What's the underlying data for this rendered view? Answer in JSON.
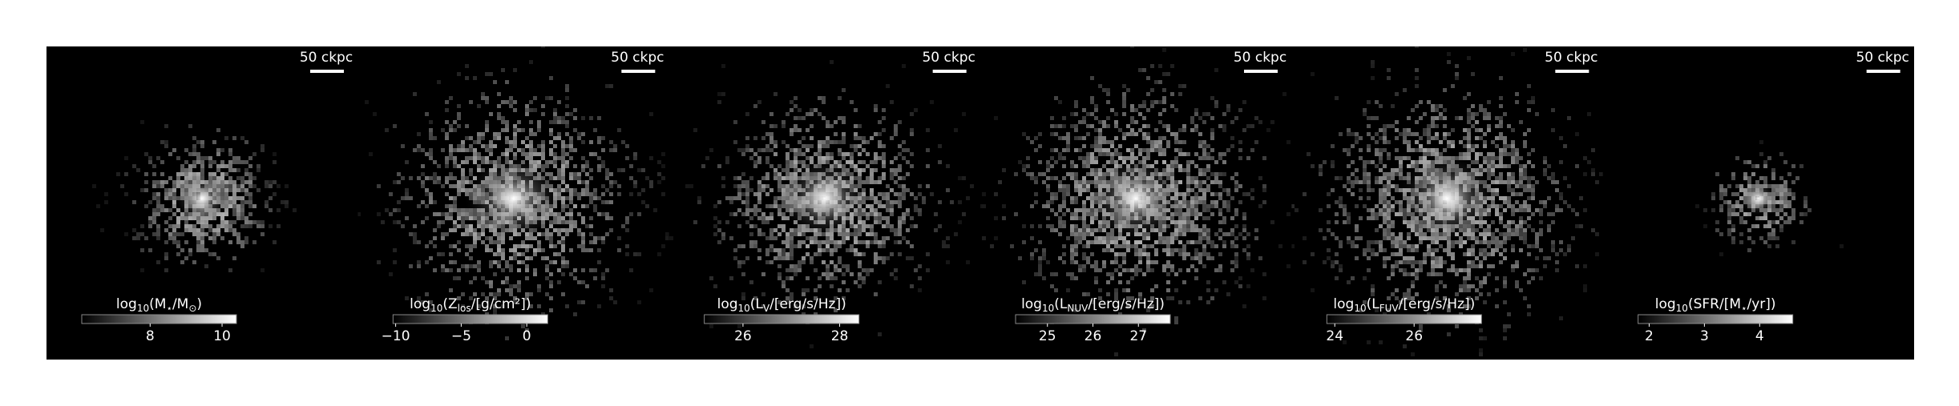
{
  "panels": [
    {
      "scale_bar": "50 ckpc",
      "label": [
        {
          "text": "log"
        },
        {
          "text": "10",
          "sub": true
        },
        {
          "text": "(M"
        },
        {
          "text": "⋆",
          "sub": true
        },
        {
          "text": "/M"
        },
        {
          "text": "⊙",
          "sub": true
        },
        {
          "text": ")"
        }
      ],
      "lim": [
        6.1,
        10.4
      ],
      "ticks": [
        8,
        10
      ],
      "spread": 40,
      "count": 700
    },
    {
      "scale_bar": "50 ckpc",
      "label": [
        {
          "text": "log"
        },
        {
          "text": "10",
          "sub": true
        },
        {
          "text": "(Z"
        },
        {
          "text": "los",
          "sub": true
        },
        {
          "text": "/[g/cm²])"
        }
      ],
      "lim": [
        -10.2,
        1.6
      ],
      "ticks": [
        {
          "value": -10,
          "label": "−10"
        },
        {
          "value": -5,
          "label": "−5"
        },
        0
      ],
      "spread": 70,
      "count": 1500
    },
    {
      "scale_bar": "50 ckpc",
      "label": [
        {
          "text": "log"
        },
        {
          "text": "10",
          "sub": true
        },
        {
          "text": "(L"
        },
        {
          "text": "V",
          "sub": true
        },
        {
          "text": "/[erg/s/Hz])"
        }
      ],
      "lim": [
        25.2,
        28.4
      ],
      "ticks": [
        26,
        28
      ],
      "spread": 65,
      "count": 1300
    },
    {
      "scale_bar": "50 ckpc",
      "label": [
        {
          "text": "log"
        },
        {
          "text": "10",
          "sub": true
        },
        {
          "text": "(L"
        },
        {
          "text": "NUV",
          "sub": true
        },
        {
          "text": "/[erg/s/Hz])"
        }
      ],
      "lim": [
        24.3,
        27.7
      ],
      "ticks": [
        25,
        26,
        27
      ],
      "spread": 70,
      "count": 1700
    },
    {
      "scale_bar": "50 ckpc",
      "label": [
        {
          "text": "log"
        },
        {
          "text": "10",
          "sub": true
        },
        {
          "text": "(L"
        },
        {
          "text": "FUV",
          "sub": true
        },
        {
          "text": "/[erg/s/Hz])"
        }
      ],
      "lim": [
        23.8,
        27.7
      ],
      "ticks": [
        24,
        26
      ],
      "spread": 72,
      "count": 1800
    },
    {
      "scale_bar": "50 ckpc",
      "label": [
        {
          "text": "log"
        },
        {
          "text": "10",
          "sub": true
        },
        {
          "text": "(SFR/[M"
        },
        {
          "text": "⋆",
          "sub": true
        },
        {
          "text": "/yr])"
        }
      ],
      "lim": [
        1.8,
        4.6
      ],
      "ticks": [
        2,
        3,
        4
      ],
      "spread": 28,
      "count": 300
    }
  ]
}
